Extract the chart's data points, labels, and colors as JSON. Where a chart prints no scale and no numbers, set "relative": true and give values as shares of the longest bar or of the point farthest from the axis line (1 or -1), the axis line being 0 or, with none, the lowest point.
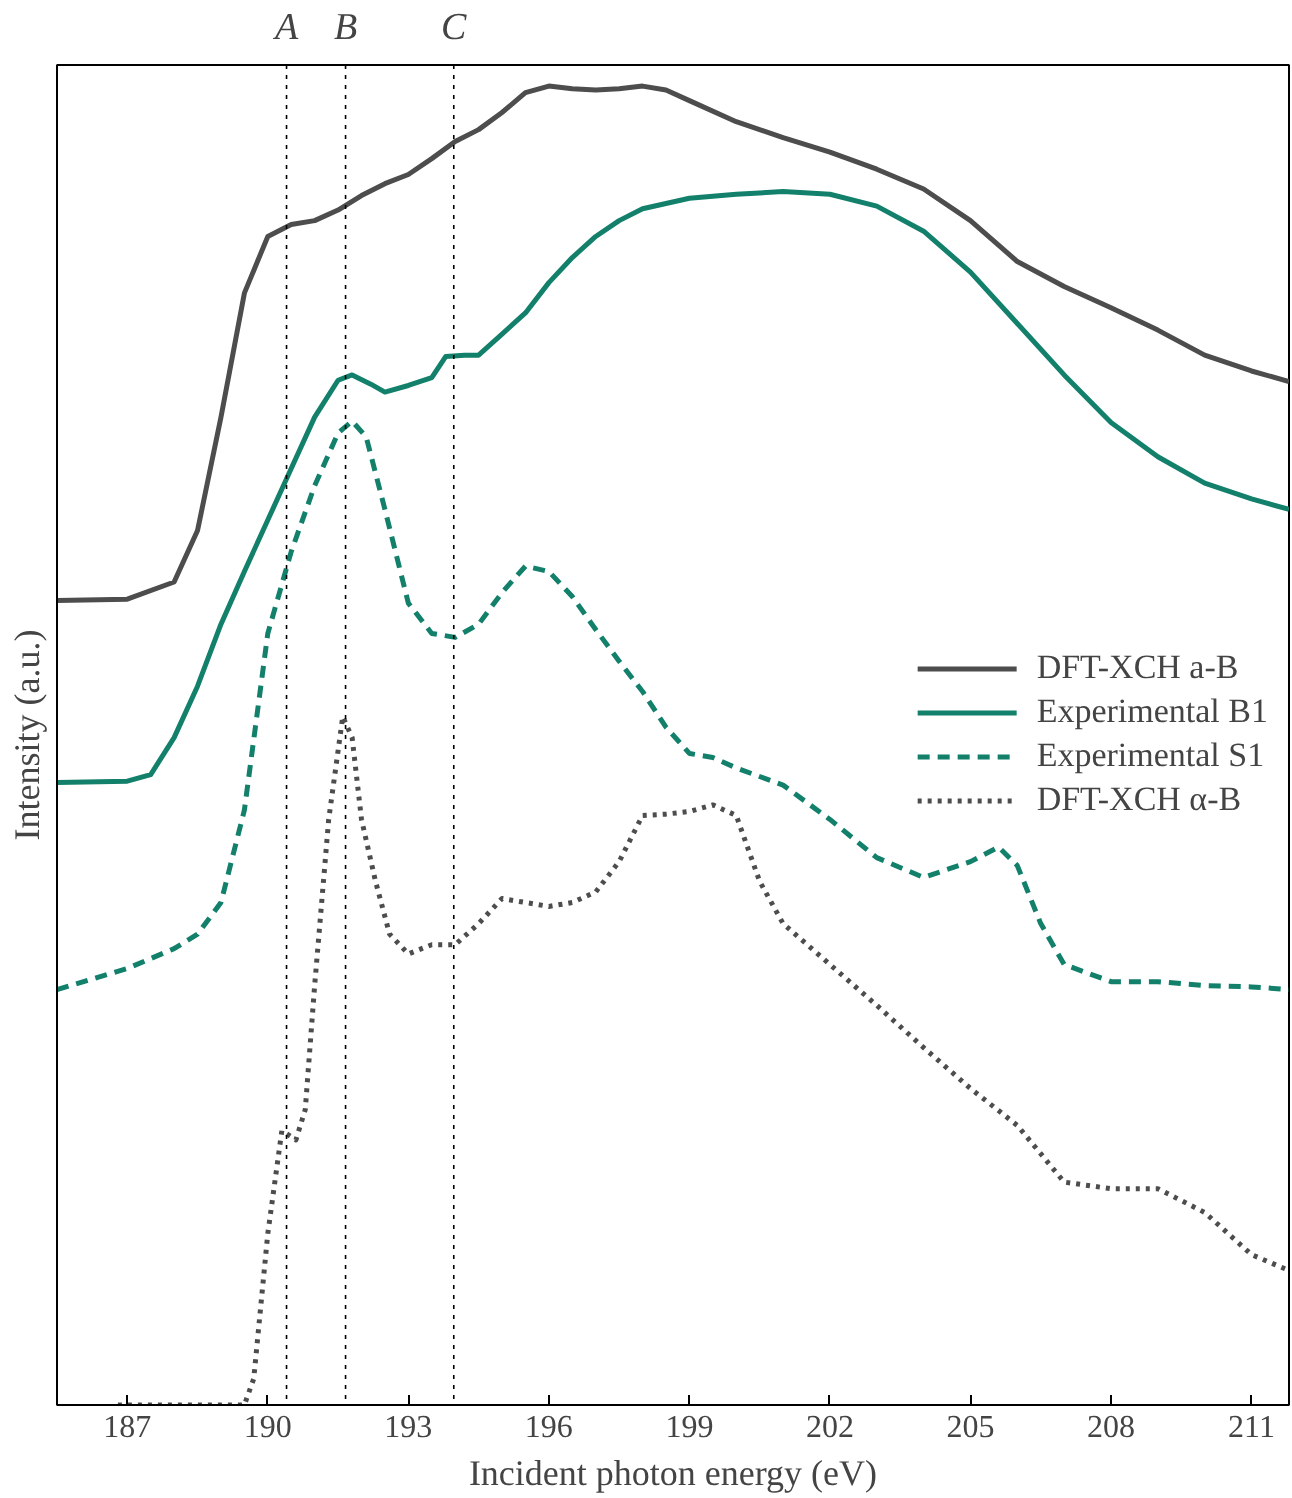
{
  "chart_data": {
    "type": "line",
    "relative": true,
    "xlabel": "Incident photon energy (eV)",
    "ylabel": "Intensity (a.u.)",
    "xlim": [
      185.5,
      211.8
    ],
    "xticks": [
      187,
      190,
      193,
      196,
      199,
      202,
      205,
      208,
      211
    ],
    "grid": false,
    "legend": "right",
    "ref_lines": [
      {
        "axis": "x",
        "value": 190.4,
        "label": "A",
        "color": "#000000",
        "line_style": "dotted"
      },
      {
        "axis": "x",
        "value": 191.66,
        "label": "B",
        "color": "#000000",
        "line_style": "dotted"
      },
      {
        "axis": "x",
        "value": 193.97,
        "label": "C",
        "color": "#000000",
        "line_style": "dotted"
      }
    ],
    "series": [
      {
        "name": "DFT-XCH a-B",
        "color": "#4d4d4d",
        "line_style": "solid",
        "x": [
          185.5,
          187,
          188,
          188.5,
          189,
          189.5,
          190,
          190.5,
          191,
          191.5,
          192,
          192.5,
          193,
          193.5,
          194,
          194.5,
          195,
          195.5,
          196,
          196.5,
          197,
          197.5,
          198,
          198.5,
          199,
          200,
          201,
          202,
          203,
          204,
          205,
          206,
          207,
          208,
          209,
          210,
          211,
          211.8
        ],
        "values": [
          0.61,
          0.611,
          0.624,
          0.663,
          0.749,
          0.843,
          0.886,
          0.895,
          0.898,
          0.906,
          0.917,
          0.926,
          0.933,
          0.945,
          0.958,
          0.967,
          0.98,
          0.995,
          1.0,
          0.998,
          0.997,
          0.998,
          1.0,
          0.997,
          0.989,
          0.973,
          0.961,
          0.95,
          0.937,
          0.922,
          0.898,
          0.867,
          0.848,
          0.832,
          0.815,
          0.796,
          0.784,
          0.776
        ]
      },
      {
        "name": "Experimental B1",
        "color": "#12806a",
        "line_style": "solid",
        "x": [
          185.5,
          187,
          187.5,
          188,
          188.5,
          189,
          189.5,
          190,
          190.5,
          191,
          191.5,
          191.8,
          192.2,
          192.5,
          193,
          193.5,
          193.8,
          194.2,
          194.5,
          195,
          195.5,
          196,
          196.5,
          197,
          197.5,
          198,
          199,
          200,
          201,
          202,
          203,
          204,
          205,
          206,
          207,
          208,
          209,
          210,
          211,
          211.8
        ],
        "values": [
          0.472,
          0.473,
          0.478,
          0.506,
          0.545,
          0.592,
          0.632,
          0.671,
          0.71,
          0.749,
          0.777,
          0.781,
          0.774,
          0.768,
          0.773,
          0.779,
          0.795,
          0.796,
          0.796,
          0.812,
          0.828,
          0.851,
          0.87,
          0.886,
          0.898,
          0.907,
          0.915,
          0.918,
          0.92,
          0.918,
          0.909,
          0.89,
          0.859,
          0.82,
          0.781,
          0.745,
          0.719,
          0.699,
          0.687,
          0.679
        ]
      },
      {
        "name": "Experimental S1",
        "color": "#12806a",
        "line_style": "dashed",
        "x": [
          185.5,
          187,
          188,
          188.5,
          189,
          189.5,
          190,
          190.5,
          191,
          191.5,
          191.8,
          192.1,
          192.5,
          193,
          193.5,
          194,
          194.5,
          195,
          195.5,
          196,
          196.5,
          197,
          197.5,
          198,
          198.5,
          199,
          199.5,
          200,
          201,
          202,
          203,
          204,
          205,
          205.6,
          206,
          206.5,
          207,
          208,
          209,
          210,
          211,
          211.8
        ],
        "values": [
          0.315,
          0.331,
          0.346,
          0.357,
          0.381,
          0.451,
          0.585,
          0.647,
          0.697,
          0.737,
          0.746,
          0.734,
          0.679,
          0.608,
          0.585,
          0.582,
          0.592,
          0.616,
          0.636,
          0.632,
          0.613,
          0.588,
          0.564,
          0.541,
          0.514,
          0.494,
          0.491,
          0.483,
          0.47,
          0.444,
          0.415,
          0.4,
          0.412,
          0.423,
          0.409,
          0.365,
          0.334,
          0.321,
          0.321,
          0.318,
          0.317,
          0.315
        ]
      },
      {
        "name": "DFT-XCH α-B",
        "color": "#4d4d4d",
        "line_style": "dotted",
        "x": [
          186.8,
          189.5,
          189.7,
          190,
          190.3,
          190.6,
          190.8,
          191,
          191.3,
          191.6,
          191.8,
          192,
          192.3,
          192.6,
          193,
          193.5,
          194,
          194.5,
          195,
          195.5,
          196,
          196.5,
          197,
          197.5,
          198,
          198.5,
          199,
          199.5,
          200,
          200.5,
          201,
          202,
          203,
          204,
          205,
          206,
          207,
          208,
          209,
          210,
          211,
          211.8
        ],
        "values": [
          0,
          0,
          0.02,
          0.13,
          0.208,
          0.201,
          0.224,
          0.318,
          0.444,
          0.522,
          0.506,
          0.444,
          0.397,
          0.357,
          0.342,
          0.349,
          0.349,
          0.365,
          0.384,
          0.381,
          0.378,
          0.381,
          0.389,
          0.412,
          0.447,
          0.448,
          0.45,
          0.455,
          0.447,
          0.397,
          0.365,
          0.334,
          0.303,
          0.271,
          0.24,
          0.212,
          0.169,
          0.164,
          0.164,
          0.146,
          0.114,
          0.102
        ]
      }
    ]
  }
}
